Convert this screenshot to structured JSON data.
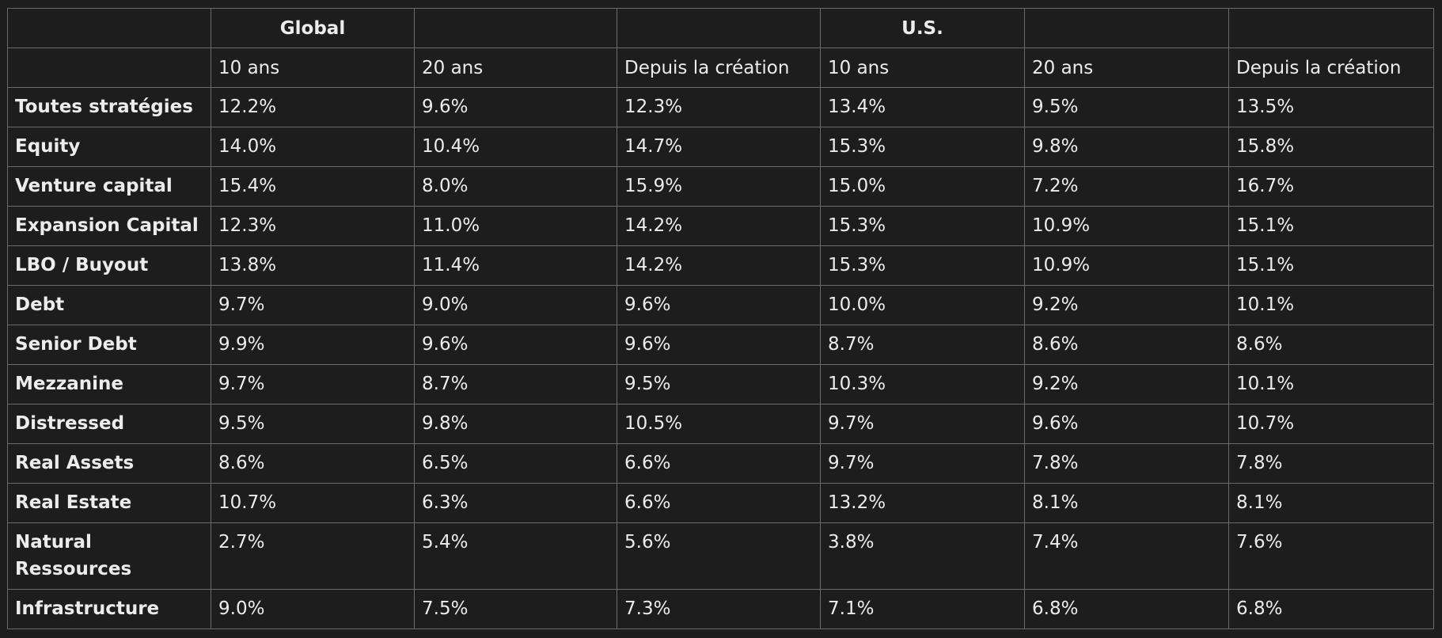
{
  "table": {
    "group_headers": [
      "",
      "Global",
      "",
      "",
      "U.S.",
      "",
      ""
    ],
    "sub_headers": [
      "",
      "10 ans",
      "20 ans",
      "Depuis la création",
      "10 ans",
      "20 ans",
      "Depuis la création"
    ],
    "rows": [
      {
        "label": "Toutes stratégies",
        "values": [
          "12.2%",
          "9.6%",
          "12.3%",
          "13.4%",
          "9.5%",
          "13.5%"
        ]
      },
      {
        "label": "Equity",
        "values": [
          "14.0%",
          "10.4%",
          "14.7%",
          "15.3%",
          "9.8%",
          "15.8%"
        ]
      },
      {
        "label": "Venture capital",
        "values": [
          "15.4%",
          "8.0%",
          "15.9%",
          "15.0%",
          "7.2%",
          "16.7%"
        ]
      },
      {
        "label": "Expansion Capital",
        "values": [
          "12.3%",
          "11.0%",
          "14.2%",
          "15.3%",
          "10.9%",
          "15.1%"
        ]
      },
      {
        "label": "LBO / Buyout",
        "values": [
          "13.8%",
          "11.4%",
          "14.2%",
          "15.3%",
          "10.9%",
          "15.1%"
        ]
      },
      {
        "label": "Debt",
        "values": [
          "9.7%",
          "9.0%",
          "9.6%",
          "10.0%",
          "9.2%",
          "10.1%"
        ]
      },
      {
        "label": "Senior Debt",
        "values": [
          "9.9%",
          "9.6%",
          "9.6%",
          "8.7%",
          "8.6%",
          "8.6%"
        ]
      },
      {
        "label": "Mezzanine",
        "values": [
          "9.7%",
          "8.7%",
          "9.5%",
          "10.3%",
          "9.2%",
          "10.1%"
        ]
      },
      {
        "label": "Distressed",
        "values": [
          "9.5%",
          "9.8%",
          "10.5%",
          "9.7%",
          "9.6%",
          "10.7%"
        ]
      },
      {
        "label": "Real Assets",
        "values": [
          "8.6%",
          "6.5%",
          "6.6%",
          "9.7%",
          "7.8%",
          "7.8%"
        ]
      },
      {
        "label": "Real Estate",
        "values": [
          "10.7%",
          "6.3%",
          "6.6%",
          "13.2%",
          "8.1%",
          "8.1%"
        ]
      },
      {
        "label": "Natural Ressources",
        "values": [
          "2.7%",
          "5.4%",
          "5.6%",
          "3.8%",
          "7.4%",
          "7.6%"
        ]
      },
      {
        "label": "Infrastructure",
        "values": [
          "9.0%",
          "7.5%",
          "7.3%",
          "7.1%",
          "6.8%",
          "6.8%"
        ]
      }
    ]
  }
}
